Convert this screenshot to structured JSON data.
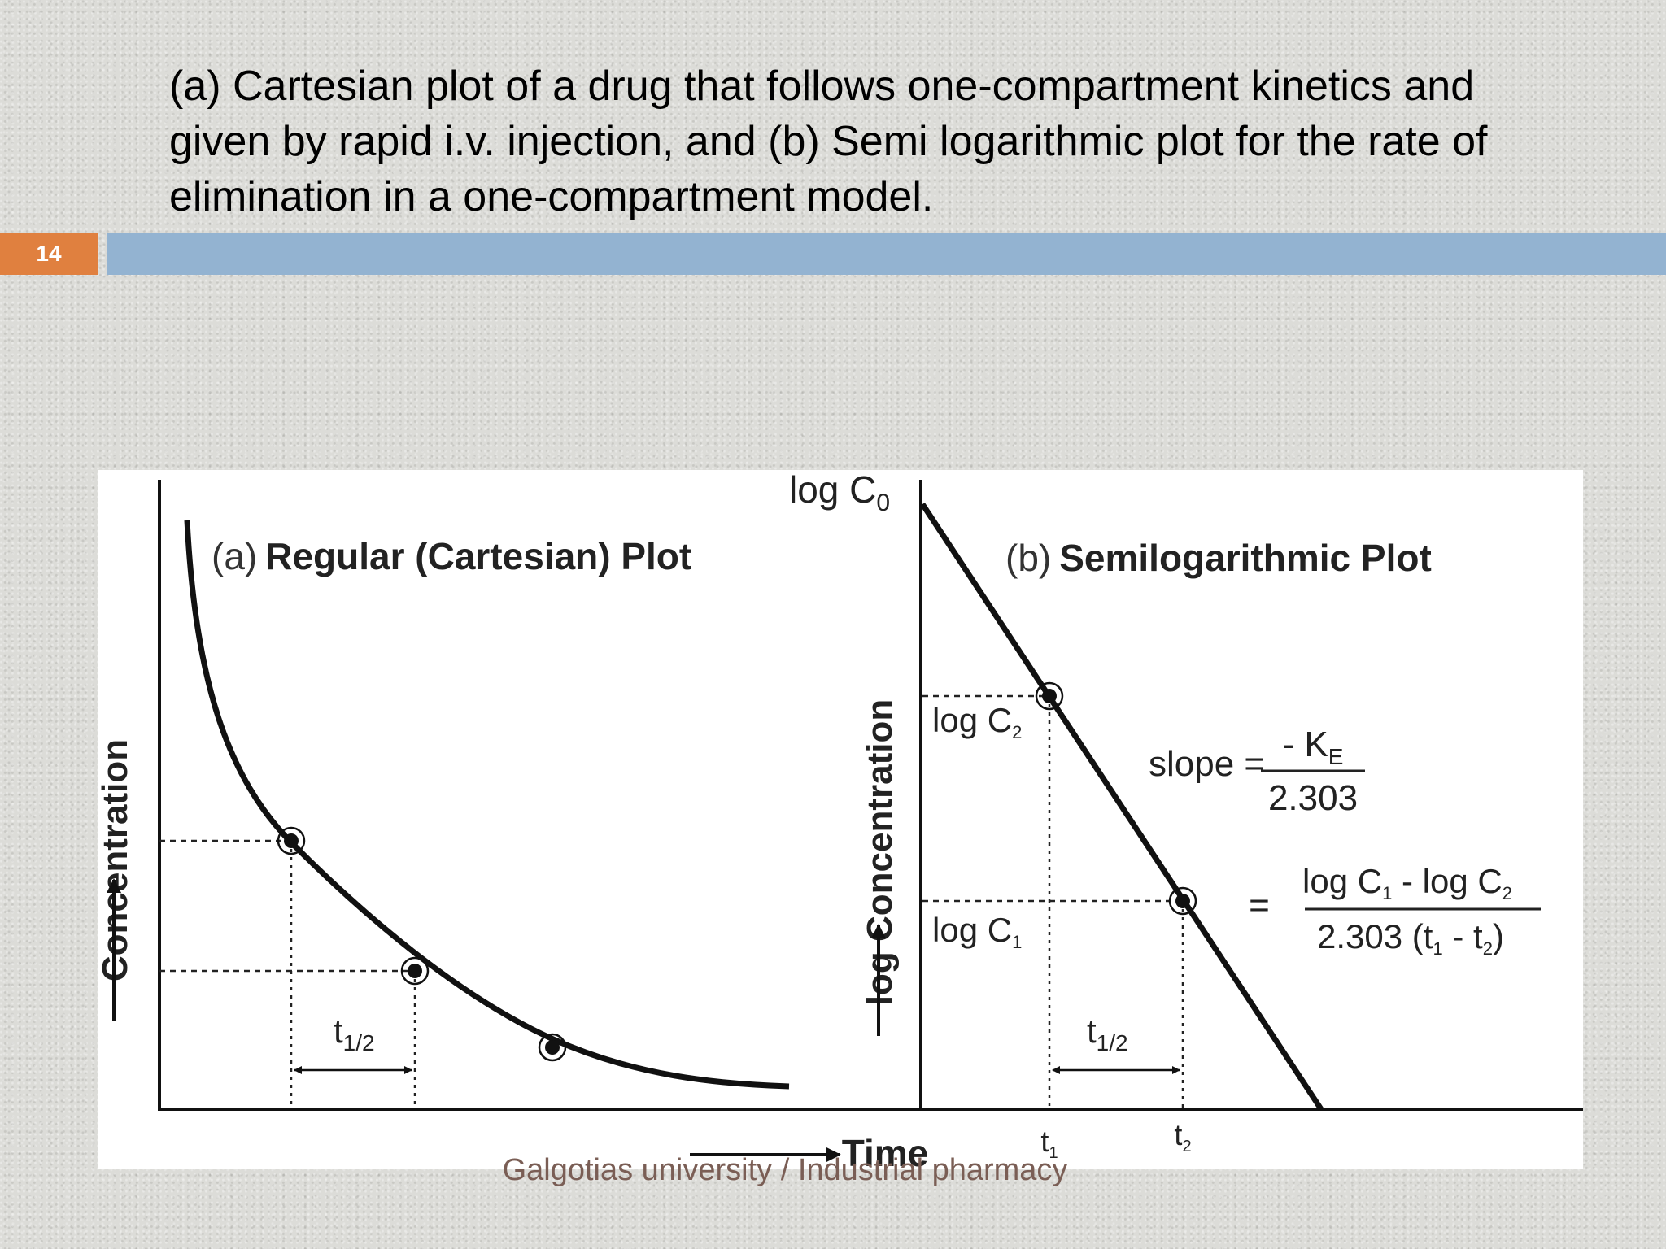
{
  "slide": {
    "title": "(a) Cartesian plot of a drug that follows one-compartment kinetics and given by rapid i.v. injection, and (b) Semi logarithmic plot for the rate of elimination in a one-compartment model.",
    "number": "14",
    "footer": "Galgotias university / Industrial pharmacy"
  },
  "colors": {
    "accent_orange": "#e0803f",
    "bar_blue": "#93b3d1",
    "footer_text": "#7a5e55"
  },
  "figure": {
    "panel_a": {
      "title_prefix": "(a)",
      "title": "Regular (Cartesian) Plot",
      "y_label": "Concentration",
      "half_life": {
        "t": "t",
        "sub": "1/2"
      }
    },
    "panel_b": {
      "title_prefix": "(b)",
      "title": "Semilogarithmic Plot",
      "y_label": "log Concentration",
      "log_c0": {
        "main": "log C",
        "sub": "0"
      },
      "log_c2": {
        "main": "log C",
        "sub": "2"
      },
      "log_c1": {
        "main": "log C",
        "sub": "1"
      },
      "slope_label": "slope =",
      "slope_numerator": {
        "prefix": "- K",
        "sub": "E"
      },
      "slope_denominator": "2.303",
      "equals": "=",
      "formula_numerator": {
        "a": "log C",
        "a_sub": "1",
        "b": " - log C",
        "b_sub": "2"
      },
      "formula_denominator": {
        "a": "2.303 (t",
        "a_sub": "1",
        "b": " - t",
        "b_sub": "2",
        "c": ")"
      },
      "half_life": {
        "t": "t",
        "sub": "1/2"
      },
      "t1": {
        "t": "t",
        "sub": "1"
      },
      "t2": {
        "t": "t",
        "sub": "2"
      }
    },
    "x_label": "Time"
  }
}
